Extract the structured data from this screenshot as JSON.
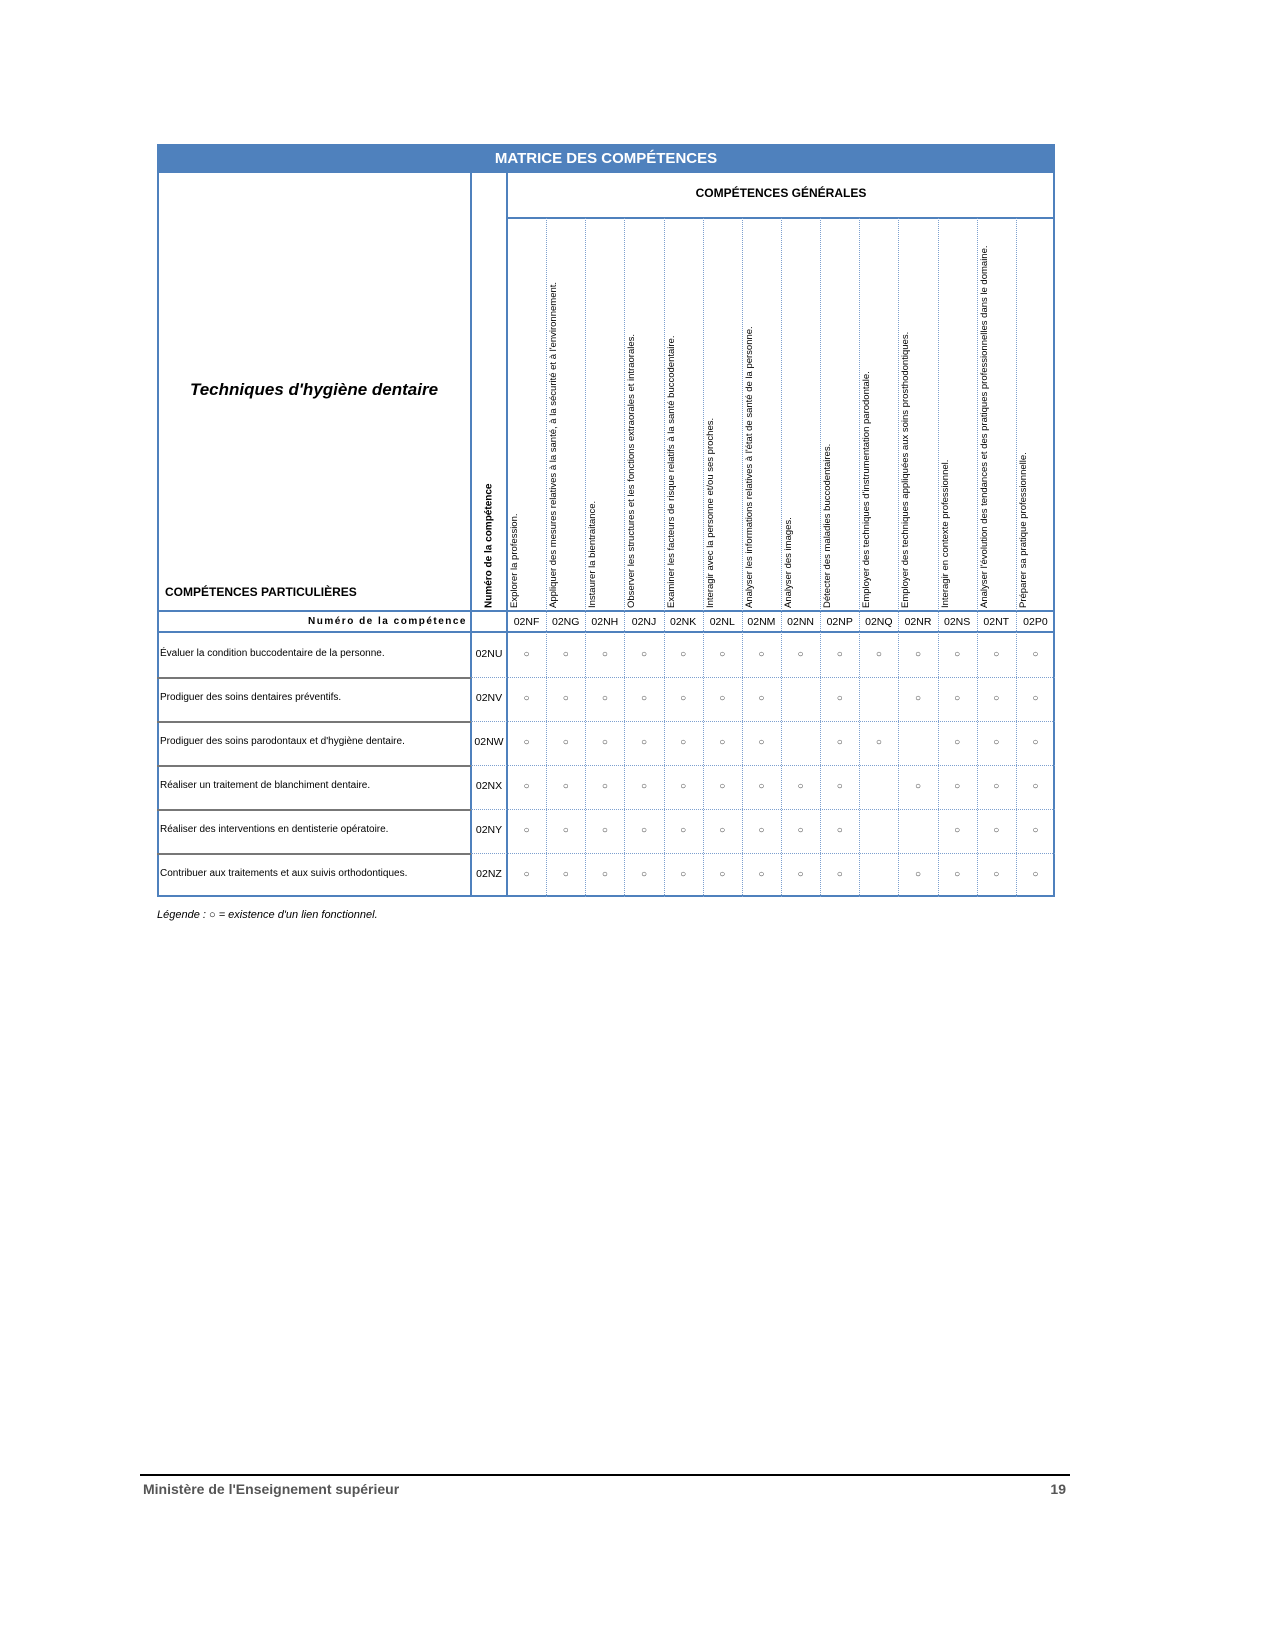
{
  "title": "MATRICE DES COMPÉTENCES",
  "program": "Techniques d'hygiène dentaire",
  "general_header": "COMPÉTENCES GÉNÉRALES",
  "particular_header": "COMPÉTENCES PARTICULIÈRES",
  "number_header_rotated": "Numéro de la compétence",
  "number_row_label": "Numéro de la compétence",
  "mark_symbol": "○",
  "accent_color": "#4f81bd",
  "general_competencies": [
    {
      "code": "02NF",
      "label": "Explorer la profession."
    },
    {
      "code": "02NG",
      "label": "Appliquer des mesures relatives à la santé, à la sécurité et à l'environnement."
    },
    {
      "code": "02NH",
      "label": "Instaurer la bientraitance."
    },
    {
      "code": "02NJ",
      "label": "Observer les structures et les fonctions extraorales et intraorales."
    },
    {
      "code": "02NK",
      "label": "Examiner les facteurs de risque relatifs à la santé buccodentaire."
    },
    {
      "code": "02NL",
      "label": "Interagir avec la personne et/ou ses proches."
    },
    {
      "code": "02NM",
      "label": "Analyser les informations relatives à l'état de santé de la personne."
    },
    {
      "code": "02NN",
      "label": "Analyser des images."
    },
    {
      "code": "02NP",
      "label": "Détecter des maladies buccodentaires."
    },
    {
      "code": "02NQ",
      "label": "Employer des techniques d'instrumentation parodontale."
    },
    {
      "code": "02NR",
      "label": "Employer des techniques appliquées aux soins prosthodontiques."
    },
    {
      "code": "02NS",
      "label": "Interagir en contexte professionnel."
    },
    {
      "code": "02NT",
      "label": "Analyser l'évolution des tendances et des pratiques professionnelles dans le domaine."
    },
    {
      "code": "02P0",
      "label": "Préparer sa pratique professionnelle."
    }
  ],
  "particular_competencies": [
    {
      "code": "02NU",
      "label": "Évaluer la condition buccodentaire de la personne.",
      "links": [
        1,
        1,
        1,
        1,
        1,
        1,
        1,
        1,
        1,
        1,
        1,
        1,
        1,
        1
      ]
    },
    {
      "code": "02NV",
      "label": "Prodiguer des soins dentaires préventifs.",
      "links": [
        1,
        1,
        1,
        1,
        1,
        1,
        1,
        0,
        1,
        0,
        1,
        1,
        1,
        1
      ]
    },
    {
      "code": "02NW",
      "label": "Prodiguer des soins parodontaux et d'hygiène dentaire.",
      "links": [
        1,
        1,
        1,
        1,
        1,
        1,
        1,
        0,
        1,
        1,
        0,
        1,
        1,
        1
      ]
    },
    {
      "code": "02NX",
      "label": "Réaliser un traitement de blanchiment dentaire.",
      "links": [
        1,
        1,
        1,
        1,
        1,
        1,
        1,
        1,
        1,
        0,
        1,
        1,
        1,
        1
      ]
    },
    {
      "code": "02NY",
      "label": "Réaliser des interventions en dentisterie opératoire.",
      "links": [
        1,
        1,
        1,
        1,
        1,
        1,
        1,
        1,
        1,
        0,
        0,
        1,
        1,
        1
      ]
    },
    {
      "code": "02NZ",
      "label": "Contribuer aux traitements et aux suivis orthodontiques.",
      "links": [
        1,
        1,
        1,
        1,
        1,
        1,
        1,
        1,
        1,
        0,
        1,
        1,
        1,
        1
      ]
    }
  ],
  "legend": "Légende : ○ = existence d'un lien fonctionnel.",
  "footer": {
    "ministry": "Ministère de l'Enseignement supérieur",
    "page": "19"
  }
}
